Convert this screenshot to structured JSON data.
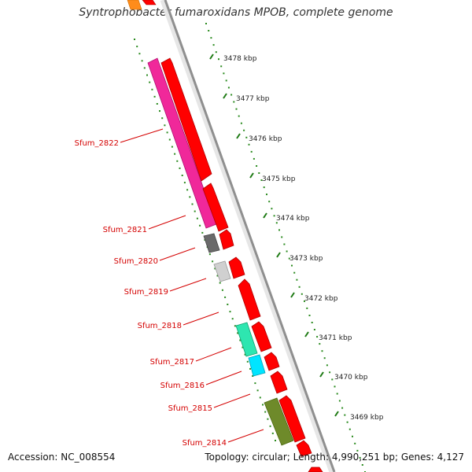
{
  "title": "Syntrophobacter fumaroxidans MPOB, complete genome",
  "footer": {
    "accession": "Accession: NC_008554",
    "topology": "Topology: circular; Length: 4,990,251 bp; Genes: 4,127"
  },
  "colors": {
    "backbone": "#8c8c8c",
    "scale_dots": "#2a8a1e",
    "gene_label": "#d40000",
    "forward_genes": "#ff0000"
  },
  "scale_labels": [
    "3478 kbp",
    "3477 kbp",
    "3476 kbp",
    "3475 kbp",
    "3474 kbp",
    "3473 kbp",
    "3472 kbp",
    "3471 kbp",
    "3470 kbp",
    "3469 kbp"
  ],
  "gene_labels": [
    "Sfum_2822",
    "Sfum_2821",
    "Sfum_2820",
    "Sfum_2819",
    "Sfum_2818",
    "Sfum_2817",
    "Sfum_2816",
    "Sfum_2815",
    "Sfum_2814"
  ]
}
